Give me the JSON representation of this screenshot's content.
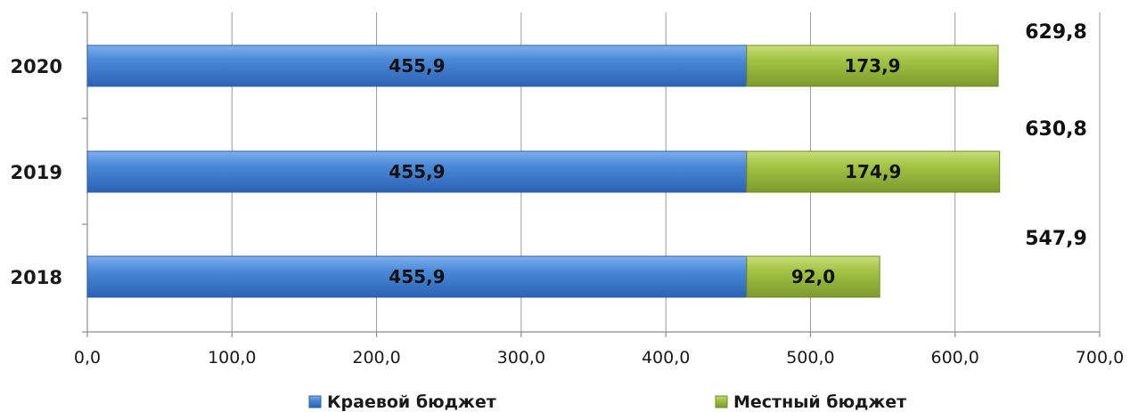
{
  "chart_data": {
    "type": "bar",
    "orientation": "horizontal",
    "stacked": true,
    "categories": [
      "2020",
      "2019",
      "2018"
    ],
    "series": [
      {
        "name": "Краевой бюджет",
        "values": [
          455.9,
          455.9,
          455.9
        ],
        "labels": [
          "455,9",
          "455,9",
          "455,9"
        ],
        "color": "#3f7fd0"
      },
      {
        "name": "Местный бюджет",
        "values": [
          173.9,
          174.9,
          92.0
        ],
        "labels": [
          "173,9",
          "174,9",
          "92,0"
        ],
        "color": "#9bbb3b"
      }
    ],
    "totals": [
      "629,8",
      "630,8",
      "547,9"
    ],
    "xlim": [
      0,
      700
    ],
    "x_ticks": [
      0,
      100,
      200,
      300,
      400,
      500,
      600,
      700
    ],
    "x_tick_labels": [
      "0,0",
      "100,0",
      "200,0",
      "300,0",
      "400,0",
      "500,0",
      "600,0",
      "700,0"
    ],
    "grid": true,
    "legend_position": "bottom",
    "title": "",
    "xlabel": "",
    "ylabel": ""
  }
}
